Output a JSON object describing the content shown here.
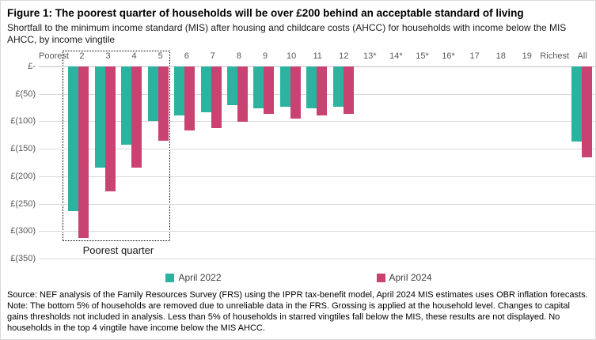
{
  "title": "Figure 1: The poorest quarter of households will be over £200 behind an acceptable standard of living",
  "subtitle": "Shortfall to the minimum income standard (MIS) after housing and childcare costs (AHCC) for households with income below the MIS AHCC, by income vingtile",
  "chart_data": {
    "type": "bar",
    "orientation": "vertical-downward",
    "categories": [
      "Poorest",
      "2",
      "3",
      "4",
      "5",
      "6",
      "7",
      "8",
      "9",
      "10",
      "11",
      "12",
      "13*",
      "14*",
      "15*",
      "16*",
      "17",
      "18",
      "19",
      "Richest",
      "All"
    ],
    "series": [
      {
        "name": "April 2022",
        "color": "#2bb3a0",
        "values": [
          null,
          -263,
          -184,
          -143,
          -100,
          -90,
          -84,
          -71,
          -76,
          -74,
          -76,
          -74,
          null,
          null,
          null,
          null,
          null,
          null,
          null,
          null,
          -137
        ]
      },
      {
        "name": "April 2024",
        "color": "#c94372",
        "values": [
          null,
          -312,
          -227,
          -184,
          -135,
          -116,
          -113,
          -101,
          -87,
          -95,
          -89,
          -86,
          null,
          null,
          null,
          null,
          null,
          null,
          null,
          null,
          -165
        ]
      }
    ],
    "ylim": [
      0,
      -350
    ],
    "y_ticks": [
      "£-",
      "£(50)",
      "£(100)",
      "£(150)",
      "£(200)",
      "£(250)",
      "£(300)",
      "£(350)"
    ],
    "y_tick_values": [
      0,
      -50,
      -100,
      -150,
      -200,
      -250,
      -300,
      -350
    ],
    "grid": true,
    "legend_position": "bottom",
    "annotation": {
      "label": "Poorest quarter",
      "from_category": "2",
      "to_category": "5"
    }
  },
  "legend": {
    "items": [
      {
        "label": "April 2022",
        "color": "#2bb3a0"
      },
      {
        "label": "April 2024",
        "color": "#c94372"
      }
    ]
  },
  "footer": {
    "source": "Source: NEF analysis of the Family Resources Survey (FRS) using the IPPR tax-benefit model, April 2024 MIS estimates uses OBR inflation forecasts.",
    "note": "Note: The bottom 5% of households are removed due to unreliable data in the FRS. Grossing is applied at the household level. Changes to capital gains thresholds not included in analysis. Less than 5% of households in starred vingtiles fall below the MIS, these results are not displayed. No households in the top 4 vingtile have income below the MIS AHCC."
  }
}
